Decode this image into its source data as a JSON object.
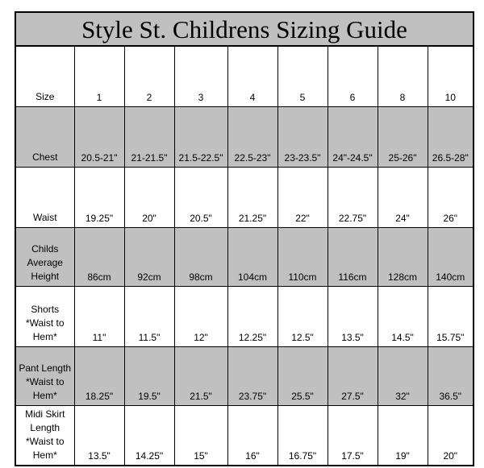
{
  "title": "Style St. Childrens Sizing Guide",
  "rows": [
    {
      "label": "Size",
      "values": [
        "1",
        "2",
        "3",
        "4",
        "5",
        "6",
        "8",
        "10"
      ]
    },
    {
      "label": "Chest",
      "values": [
        "20.5-21\"",
        "21-21.5\"",
        "21.5-22.5\"",
        "22.5-23\"",
        "23-23.5\"",
        "24\"-24.5\"",
        "25-26\"",
        "26.5-28\""
      ]
    },
    {
      "label": "Waist",
      "values": [
        "19.25\"",
        "20\"",
        "20.5\"",
        "21.25\"",
        "22\"",
        "22.75\"",
        "24\"",
        "26\""
      ]
    },
    {
      "label": "Childs Average Height",
      "values": [
        "86cm",
        "92cm",
        "98cm",
        "104cm",
        "110cm",
        "116cm",
        "128cm",
        "140cm"
      ]
    },
    {
      "label": "Shorts *Waist to Hem*",
      "values": [
        "11\"",
        "11.5\"",
        "12\"",
        "12.25\"",
        "12.5\"",
        "13.5\"",
        "14.5\"",
        "15.75\""
      ]
    },
    {
      "label": "Pant Length *Waist to Hem*",
      "values": [
        "18.25\"",
        "19.5\"",
        "21.5\"",
        "23.75\"",
        "25.5\"",
        "27.5\"",
        "32\"",
        "36.5\""
      ]
    },
    {
      "label": "Midi Skirt Length *Waist to Hem*",
      "values": [
        "13.5\"",
        "14.25\"",
        "15\"",
        "16\"",
        "16.75\"",
        "17.5\"",
        "19\"",
        "20\""
      ]
    }
  ],
  "colors": {
    "shade": "#c0c0c0",
    "border": "#000000"
  }
}
